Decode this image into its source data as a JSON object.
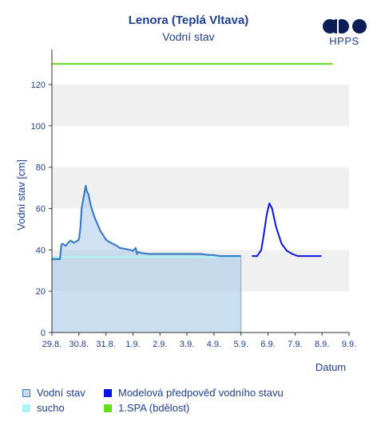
{
  "header": {
    "title": "Lenora (Teplá Vltava)",
    "subtitle": "Vodní stav",
    "logo_text": "HPPS"
  },
  "chart_data": {
    "type": "line",
    "title": "Lenora (Teplá Vltava)",
    "subtitle": "Vodní stav",
    "xlabel": "Datum",
    "ylabel": "Vodní stav [cm]",
    "x_ticks": [
      "29.8.",
      "30.8.",
      "31.8.",
      "1.9.",
      "2.9.",
      "3.9.",
      "4.9.",
      "5.9.",
      "6.9.",
      "7.9.",
      "8.9.",
      "9.9."
    ],
    "xlim_days": [
      0,
      11
    ],
    "ylim": [
      0,
      137
    ],
    "y_ticks": [
      0,
      20,
      40,
      60,
      80,
      100,
      120
    ],
    "grid": "alternating horizontal bands",
    "legend_position": "bottom",
    "colors": {
      "observed_line": "#3c7ec6",
      "observed_fill": "#a9c9ea",
      "forecast": "#0a14e6",
      "sucho": "#aaf5f5",
      "spa1": "#66dd22",
      "axis_text": "#1f3f8f"
    },
    "series": [
      {
        "name": "Vodní stav",
        "kind": "area",
        "x_days": [
          0,
          0.3,
          0.35,
          0.4,
          0.5,
          0.55,
          0.6,
          0.7,
          0.8,
          0.9,
          1.0,
          1.05,
          1.1,
          1.2,
          1.25,
          1.3,
          1.35,
          1.4,
          1.45,
          1.5,
          1.55,
          1.6,
          1.7,
          1.8,
          1.9,
          2.0,
          2.1,
          2.25,
          2.4,
          2.5,
          2.7,
          2.9,
          3.0,
          3.1,
          3.15,
          3.2,
          3.3,
          3.6,
          4.0,
          4.5,
          5.0,
          5.5,
          5.8,
          6.0,
          6.2,
          6.5,
          6.95,
          7.0
        ],
        "values": [
          35.5,
          35.5,
          42.5,
          43,
          42,
          42.5,
          43.5,
          44.5,
          43.5,
          44,
          45,
          50,
          60,
          67.5,
          71,
          68,
          67,
          64,
          61,
          59,
          57,
          55,
          52,
          49,
          47,
          45,
          44,
          43,
          42,
          41,
          40.5,
          40,
          39.5,
          41,
          38,
          39,
          38.5,
          38,
          38,
          38,
          38,
          38,
          37.5,
          37.5,
          37,
          37,
          37,
          37
        ]
      },
      {
        "name": "Modelová předpověď vodního stavu",
        "kind": "line",
        "x_days": [
          7.4,
          7.6,
          7.75,
          7.85,
          7.95,
          8.05,
          8.15,
          8.3,
          8.5,
          8.7,
          8.9,
          9.1,
          9.5,
          9.98
        ],
        "values": [
          37,
          37,
          40,
          48,
          57,
          62.5,
          60,
          51,
          43,
          39.5,
          38,
          37,
          37,
          37
        ]
      },
      {
        "name": "sucho",
        "kind": "threshold",
        "value": 36.5
      },
      {
        "name": "1.SPA (bdělost)",
        "kind": "threshold",
        "value": 130
      }
    ]
  },
  "legend": [
    {
      "label": "Vodní stav",
      "color": "#c8dcf0",
      "border": "#3c7ec6"
    },
    {
      "label": "Modelová předpověď vodního stavu",
      "color": "#0a14e6",
      "border": "#0a14e6"
    },
    {
      "label": "sucho",
      "color": "#aaf5f5",
      "border": "#aaf5f5"
    },
    {
      "label": "1.SPA (bdělost)",
      "color": "#66dd22",
      "border": "#66dd22"
    }
  ]
}
